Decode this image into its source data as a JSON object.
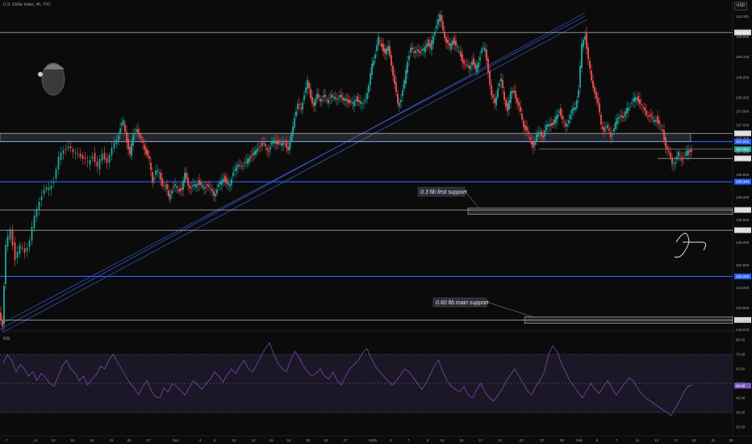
{
  "header": {
    "symbol_title": "U.S. Dollar Index, 4h, TVC",
    "currency_button": "USD",
    "rsi_label": "RSI"
  },
  "colors": {
    "background": "#0b0b0b",
    "up_candle": "#26a69a",
    "down_candle": "#ef5350",
    "level_white": "#d9d9d9",
    "level_blue": "#2962ff",
    "channel_blue": "#3b5bd9",
    "rsi_line": "#7e57c2",
    "rsi_band": "#2a2240"
  },
  "chart_data": {
    "type": "candlestick",
    "title": "U.S. Dollar Index, 4h, TVC",
    "xlabel": "",
    "ylabel": "",
    "ylim": [
      103.08,
      110.22
    ],
    "price_ticks": [
      "110.000",
      "109.550",
      "109.100",
      "108.650",
      "108.200",
      "107.900",
      "107.600",
      "107.300",
      "107.000",
      "106.500",
      "106.000",
      "105.500",
      "105.000",
      "104.500",
      "104.000",
      "103.550",
      "103.280",
      "103.070"
    ],
    "x_tick_labels": [
      "7",
      "11",
      "13",
      "15",
      "19",
      "21",
      "25",
      "27",
      "Dec",
      "4",
      "6",
      "10",
      "12",
      "16",
      "18",
      "20",
      "24",
      "27",
      "2025",
      "3",
      "7",
      "9",
      "13",
      "15",
      "17",
      "21",
      "23",
      "27",
      "29",
      "Feb",
      "5",
      "7",
      "11",
      "13",
      "17",
      "19",
      "21",
      "25"
    ],
    "close_path": [
      [
        0,
        103.45
      ],
      [
        4,
        103.2
      ],
      [
        8,
        104.9
      ],
      [
        14,
        105.3
      ],
      [
        20,
        104.65
      ],
      [
        26,
        104.9
      ],
      [
        32,
        104.8
      ],
      [
        38,
        105.05
      ],
      [
        44,
        105.55
      ],
      [
        50,
        105.95
      ],
      [
        56,
        106.15
      ],
      [
        62,
        106.2
      ],
      [
        68,
        106.4
      ],
      [
        74,
        106.85
      ],
      [
        80,
        107.05
      ],
      [
        86,
        107.15
      ],
      [
        92,
        106.95
      ],
      [
        98,
        107.0
      ],
      [
        104,
        106.85
      ],
      [
        110,
        106.75
      ],
      [
        116,
        106.95
      ],
      [
        122,
        106.65
      ],
      [
        128,
        106.95
      ],
      [
        134,
        106.8
      ],
      [
        140,
        107.05
      ],
      [
        146,
        107.3
      ],
      [
        150,
        107.55
      ],
      [
        154,
        107.65
      ],
      [
        158,
        107.25
      ],
      [
        162,
        106.95
      ],
      [
        166,
        107.35
      ],
      [
        170,
        107.55
      ],
      [
        174,
        107.3
      ],
      [
        178,
        107.2
      ],
      [
        182,
        107.0
      ],
      [
        186,
        106.8
      ],
      [
        190,
        106.35
      ],
      [
        194,
        106.6
      ],
      [
        198,
        106.5
      ],
      [
        202,
        106.3
      ],
      [
        206,
        106.25
      ],
      [
        210,
        106.0
      ],
      [
        214,
        106.2
      ],
      [
        218,
        106.25
      ],
      [
        222,
        106.15
      ],
      [
        226,
        106.2
      ],
      [
        230,
        106.5
      ],
      [
        234,
        106.3
      ],
      [
        238,
        106.2
      ],
      [
        242,
        106.25
      ],
      [
        246,
        106.35
      ],
      [
        250,
        106.25
      ],
      [
        254,
        106.2
      ],
      [
        258,
        106.3
      ],
      [
        262,
        106.15
      ],
      [
        266,
        106.05
      ],
      [
        270,
        106.2
      ],
      [
        274,
        106.3
      ],
      [
        278,
        106.45
      ],
      [
        282,
        106.3
      ],
      [
        286,
        106.25
      ],
      [
        290,
        106.6
      ],
      [
        294,
        106.65
      ],
      [
        298,
        106.7
      ],
      [
        302,
        106.75
      ],
      [
        306,
        106.75
      ],
      [
        310,
        106.9
      ],
      [
        314,
        106.95
      ],
      [
        318,
        107.0
      ],
      [
        322,
        107.15
      ],
      [
        326,
        107.2
      ],
      [
        330,
        107.1
      ],
      [
        334,
        107.05
      ],
      [
        338,
        107.2
      ],
      [
        342,
        107.25
      ],
      [
        346,
        107.2
      ],
      [
        350,
        107.15
      ],
      [
        354,
        107.25
      ],
      [
        358,
        107.05
      ],
      [
        362,
        107.35
      ],
      [
        366,
        107.8
      ],
      [
        370,
        108.05
      ],
      [
        374,
        107.95
      ],
      [
        378,
        108.3
      ],
      [
        382,
        108.55
      ],
      [
        386,
        108.2
      ],
      [
        390,
        108.05
      ],
      [
        394,
        108.25
      ],
      [
        398,
        108.15
      ],
      [
        402,
        108.25
      ],
      [
        406,
        108.1
      ],
      [
        410,
        108.25
      ],
      [
        414,
        108.2
      ],
      [
        418,
        108.15
      ],
      [
        422,
        108.3
      ],
      [
        426,
        108.1
      ],
      [
        430,
        108.2
      ],
      [
        434,
        108.1
      ],
      [
        438,
        108.05
      ],
      [
        442,
        108.2
      ],
      [
        446,
        108.1
      ],
      [
        450,
        108.05
      ],
      [
        454,
        108.2
      ],
      [
        458,
        108.45
      ],
      [
        462,
        108.95
      ],
      [
        466,
        109.2
      ],
      [
        470,
        109.5
      ],
      [
        474,
        109.35
      ],
      [
        478,
        109.2
      ],
      [
        482,
        109.3
      ],
      [
        486,
        108.95
      ],
      [
        490,
        108.5
      ],
      [
        494,
        108.05
      ],
      [
        498,
        108.2
      ],
      [
        502,
        108.55
      ],
      [
        506,
        109.0
      ],
      [
        510,
        109.35
      ],
      [
        514,
        109.15
      ],
      [
        518,
        109.3
      ],
      [
        522,
        109.2
      ],
      [
        526,
        109.25
      ],
      [
        530,
        109.45
      ],
      [
        534,
        109.3
      ],
      [
        538,
        109.55
      ],
      [
        542,
        109.85
      ],
      [
        546,
        110.0
      ],
      [
        550,
        109.7
      ],
      [
        554,
        109.45
      ],
      [
        558,
        109.3
      ],
      [
        562,
        109.5
      ],
      [
        566,
        109.35
      ],
      [
        570,
        109.2
      ],
      [
        574,
        109.05
      ],
      [
        578,
        108.9
      ],
      [
        582,
        108.85
      ],
      [
        586,
        109.05
      ],
      [
        590,
        108.8
      ],
      [
        594,
        109.0
      ],
      [
        598,
        109.3
      ],
      [
        602,
        109.25
      ],
      [
        606,
        108.8
      ],
      [
        610,
        108.25
      ],
      [
        614,
        108.05
      ],
      [
        618,
        108.45
      ],
      [
        622,
        108.6
      ],
      [
        626,
        108.15
      ],
      [
        630,
        107.95
      ],
      [
        634,
        108.3
      ],
      [
        638,
        108.35
      ],
      [
        642,
        108.1
      ],
      [
        646,
        107.85
      ],
      [
        650,
        107.6
      ],
      [
        654,
        107.45
      ],
      [
        658,
        107.25
      ],
      [
        662,
        107.15
      ],
      [
        666,
        107.35
      ],
      [
        670,
        107.45
      ],
      [
        674,
        107.35
      ],
      [
        678,
        107.55
      ],
      [
        682,
        107.65
      ],
      [
        686,
        107.6
      ],
      [
        690,
        107.75
      ],
      [
        694,
        107.95
      ],
      [
        698,
        107.7
      ],
      [
        702,
        107.55
      ],
      [
        706,
        107.75
      ],
      [
        710,
        107.9
      ],
      [
        714,
        108.0
      ],
      [
        718,
        108.4
      ],
      [
        722,
        109.35
      ],
      [
        726,
        109.6
      ],
      [
        730,
        109.05
      ],
      [
        734,
        108.55
      ],
      [
        738,
        108.35
      ],
      [
        742,
        108.05
      ],
      [
        746,
        107.6
      ],
      [
        750,
        107.5
      ],
      [
        754,
        107.55
      ],
      [
        758,
        107.35
      ],
      [
        762,
        107.55
      ],
      [
        766,
        107.7
      ],
      [
        770,
        107.85
      ],
      [
        774,
        107.75
      ],
      [
        778,
        107.95
      ],
      [
        782,
        108.05
      ],
      [
        786,
        108.15
      ],
      [
        790,
        108.2
      ],
      [
        794,
        108.1
      ],
      [
        798,
        107.95
      ],
      [
        802,
        107.85
      ],
      [
        806,
        107.8
      ],
      [
        810,
        107.7
      ],
      [
        814,
        107.75
      ],
      [
        818,
        107.6
      ],
      [
        822,
        107.45
      ],
      [
        826,
        107.15
      ],
      [
        830,
        106.95
      ],
      [
        834,
        106.75
      ],
      [
        838,
        106.8
      ],
      [
        842,
        106.95
      ],
      [
        846,
        106.85
      ],
      [
        850,
        106.95
      ],
      [
        854,
        107.0
      ],
      [
        858,
        107.05
      ]
    ],
    "levels": [
      {
        "price": 109.646,
        "color": "white",
        "label": "109.646"
      },
      {
        "price": 107.414,
        "color": "white",
        "label": "107.414"
      },
      {
        "price": 107.231,
        "color": "blue",
        "label": "107.231"
      },
      {
        "price": 107.063,
        "color": "green",
        "label": "107.063"
      },
      {
        "price": 106.86,
        "color": "white",
        "label": "106.860"
      },
      {
        "price": 106.344,
        "color": "blue",
        "label": "106.344"
      },
      {
        "price": 105.72,
        "color": "white",
        "label": "105.720"
      },
      {
        "price": 105.273,
        "color": "white",
        "label": "105.273"
      },
      {
        "price": 104.25,
        "color": "blue",
        "label": "104.250"
      },
      {
        "price": 103.288,
        "color": "white",
        "label": "103.288"
      }
    ],
    "annotations": [
      {
        "text": "0.3 fib first support"
      },
      {
        "text": "0.60 fib main support"
      }
    ],
    "rsi": {
      "ticks": [
        "80.00",
        "70.00",
        "60.00",
        "50.00",
        "40.00",
        "30.00",
        "20.00"
      ],
      "last_value": "48.49",
      "levels": [
        70,
        50,
        30
      ],
      "values": [
        64,
        70,
        66,
        58,
        63,
        60,
        55,
        58,
        52,
        57,
        54,
        50,
        48,
        55,
        62,
        66,
        60,
        57,
        52,
        55,
        49,
        53,
        56,
        62,
        60,
        66,
        70,
        65,
        60,
        55,
        50,
        47,
        42,
        48,
        52,
        45,
        41,
        40,
        47,
        44,
        50,
        48,
        45,
        42,
        47,
        52,
        49,
        46,
        50,
        53,
        58,
        55,
        51,
        56,
        60,
        57,
        62,
        66,
        60,
        58,
        63,
        69,
        74,
        78,
        70,
        64,
        60,
        58,
        66,
        72,
        68,
        62,
        58,
        55,
        57,
        60,
        55,
        53,
        58,
        52,
        49,
        55,
        60,
        63,
        66,
        71,
        74,
        68,
        62,
        58,
        55,
        52,
        49,
        52,
        56,
        60,
        58,
        54,
        50,
        46,
        50,
        56,
        62,
        66,
        58,
        52,
        48,
        46,
        44,
        48,
        42,
        40,
        46,
        50,
        44,
        40,
        38,
        42,
        46,
        52,
        56,
        60,
        55,
        50,
        45,
        42,
        48,
        52,
        58,
        70,
        76,
        72,
        64,
        58,
        52,
        48,
        44,
        40,
        45,
        50,
        46,
        43,
        48,
        52,
        47,
        42,
        46,
        50,
        54,
        52,
        47,
        43,
        40,
        38,
        36,
        34,
        32,
        30,
        28,
        33,
        38,
        44,
        48,
        49
      ]
    }
  }
}
